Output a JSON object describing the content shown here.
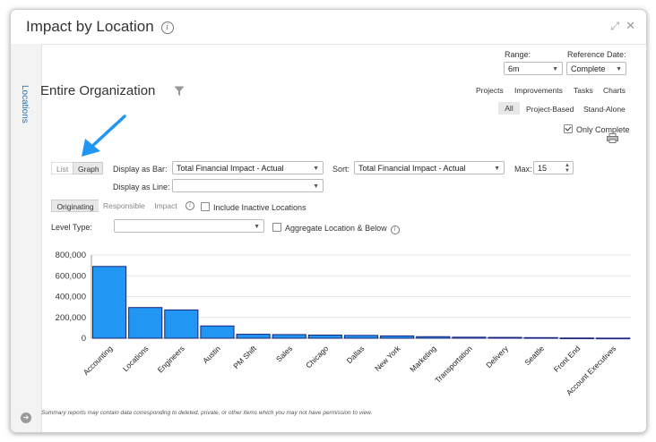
{
  "window": {
    "title": "Impact by Location",
    "side_tab": "Locations"
  },
  "controls": {
    "range_label": "Range:",
    "range_value": "6m",
    "ref_date_label": "Reference Date:",
    "ref_date_value": "Complete",
    "nav_links": [
      "Projects",
      "Improvements",
      "Tasks",
      "Charts"
    ],
    "type_filters": [
      "All",
      "Project-Based",
      "Stand-Alone"
    ],
    "active_type": "All",
    "only_complete": "Only Complete"
  },
  "org_title": "Entire Organization",
  "view_toggle": {
    "list": "List",
    "graph": "Graph",
    "active": "Graph"
  },
  "display_bar_label": "Display as Bar:",
  "display_bar_value": "Total Financial Impact - Actual",
  "display_line_label": "Display as Line:",
  "display_line_value": "",
  "sort_label": "Sort:",
  "sort_value": "Total Financial Impact - Actual",
  "max_label": "Max:",
  "max_value": "15",
  "impact_tabs": [
    "Originating",
    "Responsible",
    "Impact"
  ],
  "active_impact_tab": "Originating",
  "include_inactive": "Include Inactive Locations",
  "level_type_label": "Level Type:",
  "level_type_value": "",
  "aggregate_label": "Aggregate Location & Below",
  "footer_note": "Summary reports may contain data corresponding to deleted, private, or other items which you may not have permission to view.",
  "colors": {
    "bar": "#2196f3",
    "bar_stroke": "#1a237e",
    "accent": "#1e73be"
  },
  "chart_data": {
    "type": "bar",
    "categories": [
      "Accounting",
      "Locations",
      "Engineers",
      "Austin",
      "PM Shift",
      "Sales",
      "Chicago",
      "Dallas",
      "New York",
      "Marketing",
      "Transportation",
      "Delivery",
      "Seattle",
      "Front End",
      "Account Executives"
    ],
    "values": [
      690000,
      295000,
      272000,
      118000,
      38000,
      35000,
      30000,
      27000,
      22000,
      15000,
      10000,
      8000,
      6000,
      2000,
      1000
    ],
    "ylim": [
      0,
      800000
    ],
    "yticks": [
      0,
      200000,
      400000,
      600000,
      800000
    ],
    "ytick_labels": [
      "0",
      "200,000",
      "400,000",
      "600,000",
      "800,000"
    ],
    "grid": true,
    "title": "",
    "xlabel": "",
    "ylabel": ""
  }
}
